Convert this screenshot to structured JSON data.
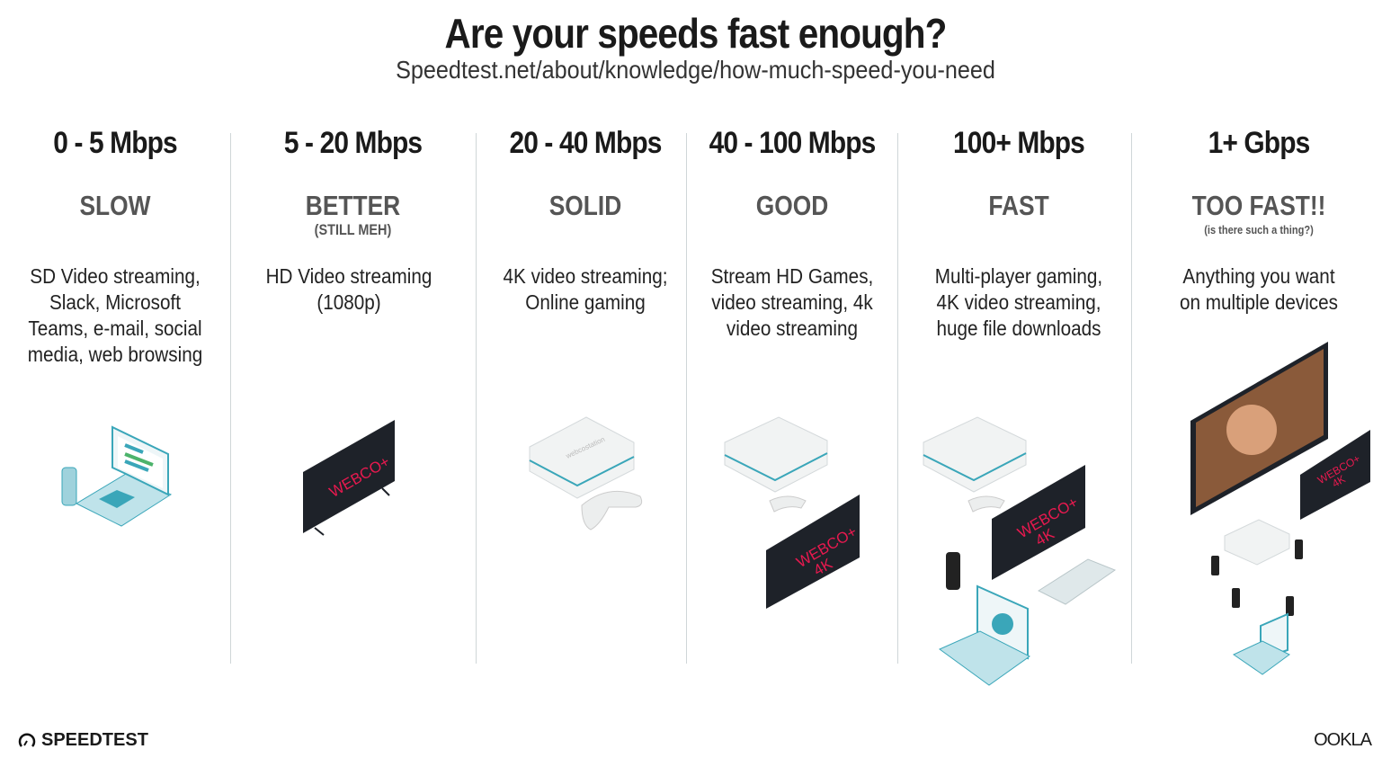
{
  "header": {
    "title": "Are your speeds fast enough?",
    "subtitle": "Speedtest.net/about/knowledge/how-much-speed-you-need"
  },
  "tiers": [
    {
      "speed": "0 - 5 Mbps",
      "rating": "SLOW",
      "note": "",
      "description": [
        "SD Video streaming,",
        "Slack, Microsoft",
        "Teams, e-mail, social",
        "media, web browsing"
      ],
      "illustration": "laptop-phone-icon"
    },
    {
      "speed": "5 - 20 Mbps",
      "rating": "BETTER",
      "note": "(STILL MEH)",
      "description": [
        "HD Video streaming",
        "(1080p)"
      ],
      "illustration": "tv-icon"
    },
    {
      "speed": "20 - 40 Mbps",
      "rating": "SOLID",
      "note": "",
      "description": [
        "4K video streaming;",
        "Online gaming"
      ],
      "illustration": "console-controller-icon"
    },
    {
      "speed": "40 - 100 Mbps",
      "rating": "GOOD",
      "note": "",
      "description": [
        "Stream HD Games,",
        "video streaming, 4k",
        "video streaming"
      ],
      "illustration": "console-tv-4k-icon"
    },
    {
      "speed": "100+ Mbps",
      "rating": "FAST",
      "note": "",
      "description": [
        "Multi-player gaming,",
        "4K video streaming,",
        "huge file downloads"
      ],
      "illustration": "console-tv-laptop-phone-icon"
    },
    {
      "speed": "1+ Gbps",
      "rating": "TOO FAST!!",
      "note": "(is there such a thing?)",
      "description": [
        "Anything you want",
        "on multiple devices"
      ],
      "illustration": "multi-device-icon"
    }
  ],
  "illustration_text": {
    "tv_brand": "WEBCO+",
    "tv_4k": "4K",
    "console_brand": "webcostation"
  },
  "footer": {
    "left_logo": "SPEEDTEST",
    "right_logo": "OOKLA"
  },
  "colors": {
    "tv_text": "#e8194f",
    "device_teal": "#3aa6b9",
    "device_light": "#eef2f3",
    "tv_body": "#1e2229"
  }
}
